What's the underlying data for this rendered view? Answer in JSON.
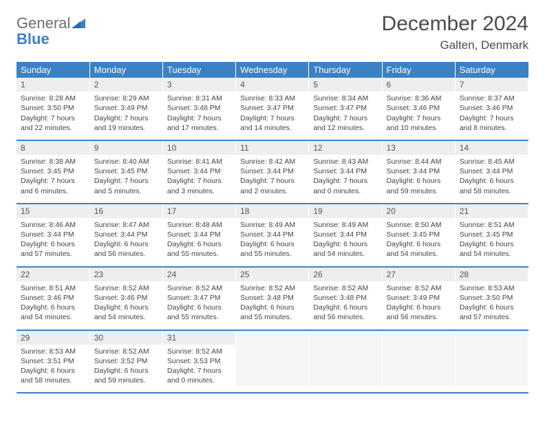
{
  "logo": {
    "word1": "General",
    "word2": "Blue"
  },
  "title": "December 2024",
  "location": "Galten, Denmark",
  "colors": {
    "header_bg": "#3b82c4",
    "header_text": "#ffffff",
    "daynum_bg": "#eceeef",
    "border": "#3b82c4",
    "text": "#444444",
    "logo_gray": "#6d6d6d",
    "logo_blue": "#3b82c4"
  },
  "weekdays": [
    "Sunday",
    "Monday",
    "Tuesday",
    "Wednesday",
    "Thursday",
    "Friday",
    "Saturday"
  ],
  "weeks": [
    [
      {
        "n": "1",
        "sr": "Sunrise: 8:28 AM",
        "ss": "Sunset: 3:50 PM",
        "dl": "Daylight: 7 hours and 22 minutes."
      },
      {
        "n": "2",
        "sr": "Sunrise: 8:29 AM",
        "ss": "Sunset: 3:49 PM",
        "dl": "Daylight: 7 hours and 19 minutes."
      },
      {
        "n": "3",
        "sr": "Sunrise: 8:31 AM",
        "ss": "Sunset: 3:48 PM",
        "dl": "Daylight: 7 hours and 17 minutes."
      },
      {
        "n": "4",
        "sr": "Sunrise: 8:33 AM",
        "ss": "Sunset: 3:47 PM",
        "dl": "Daylight: 7 hours and 14 minutes."
      },
      {
        "n": "5",
        "sr": "Sunrise: 8:34 AM",
        "ss": "Sunset: 3:47 PM",
        "dl": "Daylight: 7 hours and 12 minutes."
      },
      {
        "n": "6",
        "sr": "Sunrise: 8:36 AM",
        "ss": "Sunset: 3:46 PM",
        "dl": "Daylight: 7 hours and 10 minutes."
      },
      {
        "n": "7",
        "sr": "Sunrise: 8:37 AM",
        "ss": "Sunset: 3:46 PM",
        "dl": "Daylight: 7 hours and 8 minutes."
      }
    ],
    [
      {
        "n": "8",
        "sr": "Sunrise: 8:38 AM",
        "ss": "Sunset: 3:45 PM",
        "dl": "Daylight: 7 hours and 6 minutes."
      },
      {
        "n": "9",
        "sr": "Sunrise: 8:40 AM",
        "ss": "Sunset: 3:45 PM",
        "dl": "Daylight: 7 hours and 5 minutes."
      },
      {
        "n": "10",
        "sr": "Sunrise: 8:41 AM",
        "ss": "Sunset: 3:44 PM",
        "dl": "Daylight: 7 hours and 3 minutes."
      },
      {
        "n": "11",
        "sr": "Sunrise: 8:42 AM",
        "ss": "Sunset: 3:44 PM",
        "dl": "Daylight: 7 hours and 2 minutes."
      },
      {
        "n": "12",
        "sr": "Sunrise: 8:43 AM",
        "ss": "Sunset: 3:44 PM",
        "dl": "Daylight: 7 hours and 0 minutes."
      },
      {
        "n": "13",
        "sr": "Sunrise: 8:44 AM",
        "ss": "Sunset: 3:44 PM",
        "dl": "Daylight: 6 hours and 59 minutes."
      },
      {
        "n": "14",
        "sr": "Sunrise: 8:45 AM",
        "ss": "Sunset: 3:44 PM",
        "dl": "Daylight: 6 hours and 58 minutes."
      }
    ],
    [
      {
        "n": "15",
        "sr": "Sunrise: 8:46 AM",
        "ss": "Sunset: 3:44 PM",
        "dl": "Daylight: 6 hours and 57 minutes."
      },
      {
        "n": "16",
        "sr": "Sunrise: 8:47 AM",
        "ss": "Sunset: 3:44 PM",
        "dl": "Daylight: 6 hours and 56 minutes."
      },
      {
        "n": "17",
        "sr": "Sunrise: 8:48 AM",
        "ss": "Sunset: 3:44 PM",
        "dl": "Daylight: 6 hours and 55 minutes."
      },
      {
        "n": "18",
        "sr": "Sunrise: 8:49 AM",
        "ss": "Sunset: 3:44 PM",
        "dl": "Daylight: 6 hours and 55 minutes."
      },
      {
        "n": "19",
        "sr": "Sunrise: 8:49 AM",
        "ss": "Sunset: 3:44 PM",
        "dl": "Daylight: 6 hours and 54 minutes."
      },
      {
        "n": "20",
        "sr": "Sunrise: 8:50 AM",
        "ss": "Sunset: 3:45 PM",
        "dl": "Daylight: 6 hours and 54 minutes."
      },
      {
        "n": "21",
        "sr": "Sunrise: 8:51 AM",
        "ss": "Sunset: 3:45 PM",
        "dl": "Daylight: 6 hours and 54 minutes."
      }
    ],
    [
      {
        "n": "22",
        "sr": "Sunrise: 8:51 AM",
        "ss": "Sunset: 3:46 PM",
        "dl": "Daylight: 6 hours and 54 minutes."
      },
      {
        "n": "23",
        "sr": "Sunrise: 8:52 AM",
        "ss": "Sunset: 3:46 PM",
        "dl": "Daylight: 6 hours and 54 minutes."
      },
      {
        "n": "24",
        "sr": "Sunrise: 8:52 AM",
        "ss": "Sunset: 3:47 PM",
        "dl": "Daylight: 6 hours and 55 minutes."
      },
      {
        "n": "25",
        "sr": "Sunrise: 8:52 AM",
        "ss": "Sunset: 3:48 PM",
        "dl": "Daylight: 6 hours and 55 minutes."
      },
      {
        "n": "26",
        "sr": "Sunrise: 8:52 AM",
        "ss": "Sunset: 3:48 PM",
        "dl": "Daylight: 6 hours and 56 minutes."
      },
      {
        "n": "27",
        "sr": "Sunrise: 8:52 AM",
        "ss": "Sunset: 3:49 PM",
        "dl": "Daylight: 6 hours and 56 minutes."
      },
      {
        "n": "28",
        "sr": "Sunrise: 8:53 AM",
        "ss": "Sunset: 3:50 PM",
        "dl": "Daylight: 6 hours and 57 minutes."
      }
    ],
    [
      {
        "n": "29",
        "sr": "Sunrise: 8:53 AM",
        "ss": "Sunset: 3:51 PM",
        "dl": "Daylight: 6 hours and 58 minutes."
      },
      {
        "n": "30",
        "sr": "Sunrise: 8:52 AM",
        "ss": "Sunset: 3:52 PM",
        "dl": "Daylight: 6 hours and 59 minutes."
      },
      {
        "n": "31",
        "sr": "Sunrise: 8:52 AM",
        "ss": "Sunset: 3:53 PM",
        "dl": "Daylight: 7 hours and 0 minutes."
      },
      null,
      null,
      null,
      null
    ]
  ]
}
